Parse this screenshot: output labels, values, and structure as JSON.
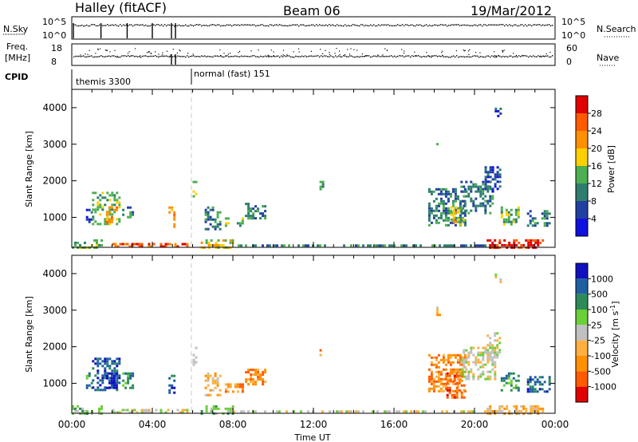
{
  "header": {
    "station": "Halley (fitACF)",
    "beam": "Beam 06",
    "date": "19/Mar/2012"
  },
  "strips": {
    "nsky": {
      "label": "N.Sky",
      "ticks": [
        "10^5",
        "10^0"
      ],
      "right_ticks": [
        "10^5",
        "10^0"
      ],
      "right_label": "N.Search"
    },
    "freq": {
      "label_top": "Freq.",
      "label_bottom": "[MHz]",
      "ticks": [
        "18",
        "8"
      ],
      "right_ticks": [
        "60",
        "0"
      ],
      "right_label": "Nave"
    },
    "cpid": {
      "label": "CPID",
      "modes": [
        {
          "name": "themis 3300",
          "start_hour": 0
        },
        {
          "name": "normal (fast) 151",
          "start_hour": 6.0
        }
      ]
    }
  },
  "colors": {
    "power": [
      "#1010e0",
      "#2040a0",
      "#2e7d6e",
      "#4caf50",
      "#ffd000",
      "#ff9000",
      "#ff5a00",
      "#e00000"
    ],
    "velocity": [
      "#e00000",
      "#ff5a00",
      "#ff9000",
      "#ffb040",
      "#c0c0c0",
      "#6bcf3a",
      "#2e8b57",
      "#2060a0",
      "#1010c0"
    ]
  },
  "chart_data": [
    {
      "type": "heatmap",
      "ylabel": "Slant Range [km]",
      "xlabel": "",
      "yticks": [
        "1000",
        "2000",
        "3000",
        "4000"
      ],
      "ylim": [
        180,
        4500
      ],
      "xlim": [
        0,
        24
      ],
      "colorbar": {
        "label": "Power [dB]",
        "ticks": [
          "4",
          "8",
          "12",
          "16",
          "20",
          "24",
          "28"
        ],
        "range": [
          0,
          32
        ]
      },
      "patches": [
        {
          "t0": 0.7,
          "t1": 1.0,
          "r0": 900,
          "r1": 1300,
          "level": 1
        },
        {
          "t0": 1.0,
          "t1": 2.4,
          "r0": 800,
          "r1": 1700,
          "level": 3
        },
        {
          "t0": 1.7,
          "t1": 2.2,
          "r0": 900,
          "r1": 1300,
          "level": 5
        },
        {
          "t0": 2.5,
          "t1": 3.0,
          "r0": 1000,
          "r1": 1300,
          "level": 2
        },
        {
          "t0": 4.8,
          "t1": 5.1,
          "r0": 700,
          "r1": 1300,
          "level": 5
        },
        {
          "t0": 6.0,
          "t1": 6.2,
          "r0": 1500,
          "r1": 2000,
          "level": 4
        },
        {
          "t0": 6.6,
          "t1": 7.4,
          "r0": 700,
          "r1": 1300,
          "level": 2
        },
        {
          "t0": 7.6,
          "t1": 8.5,
          "r0": 800,
          "r1": 1000,
          "level": 3
        },
        {
          "t0": 8.6,
          "t1": 9.6,
          "r0": 1000,
          "r1": 1400,
          "level": 2
        },
        {
          "t0": 12.3,
          "t1": 12.5,
          "r0": 1800,
          "r1": 2000,
          "level": 3
        },
        {
          "t0": 17.7,
          "t1": 19.6,
          "r0": 800,
          "r1": 1800,
          "level": 2
        },
        {
          "t0": 18.8,
          "t1": 19.4,
          "r0": 800,
          "r1": 1300,
          "level": 4
        },
        {
          "t0": 19.3,
          "t1": 20.9,
          "r0": 1100,
          "r1": 2000,
          "level": 2
        },
        {
          "t0": 20.5,
          "t1": 21.3,
          "r0": 1700,
          "r1": 2400,
          "level": 1
        },
        {
          "t0": 21.3,
          "t1": 22.2,
          "r0": 800,
          "r1": 1300,
          "level": 3
        },
        {
          "t0": 22.6,
          "t1": 23.7,
          "r0": 800,
          "r1": 1200,
          "level": 2
        },
        {
          "t0": 18.1,
          "t1": 18.3,
          "r0": 2900,
          "r1": 3100,
          "level": 2
        },
        {
          "t0": 21.0,
          "t1": 21.3,
          "r0": 3800,
          "r1": 4000,
          "level": 1
        },
        {
          "t0": 0.0,
          "t1": 1.5,
          "r0": 200,
          "r1": 400,
          "level": 3
        },
        {
          "t0": 2.0,
          "t1": 5.8,
          "r0": 200,
          "r1": 300,
          "level": 6
        },
        {
          "t0": 6.4,
          "t1": 8.0,
          "r0": 200,
          "r1": 400,
          "level": 4
        },
        {
          "t0": 20.6,
          "t1": 23.4,
          "r0": 200,
          "r1": 400,
          "level": 7
        },
        {
          "t0": 8.0,
          "t1": 20.5,
          "r0": 200,
          "r1": 260,
          "level": 2
        }
      ]
    },
    {
      "type": "heatmap",
      "ylabel": "Slant Range [km]",
      "xlabel": "Time UT",
      "yticks": [
        "1000",
        "2000",
        "3000",
        "4000"
      ],
      "ylim": [
        180,
        4500
      ],
      "xlim": [
        0,
        24
      ],
      "xticks": [
        "00:00",
        "04:00",
        "08:00",
        "12:00",
        "16:00",
        "20:00",
        "00:00"
      ],
      "colorbar": {
        "label": "Velocity [m s",
        "label_sup": "-1",
        "label_end": "]",
        "ticks": [
          "1000",
          "500",
          "100",
          "25",
          "-25",
          "-100",
          "-500",
          "-1000"
        ]
      },
      "patches": [
        {
          "t0": 0.7,
          "t1": 1.0,
          "r0": 900,
          "r1": 1300,
          "level": 6
        },
        {
          "t0": 1.0,
          "t1": 2.4,
          "r0": 800,
          "r1": 1700,
          "level": 7
        },
        {
          "t0": 1.7,
          "t1": 2.2,
          "r0": 900,
          "r1": 1300,
          "level": 8
        },
        {
          "t0": 2.5,
          "t1": 3.0,
          "r0": 900,
          "r1": 1300,
          "level": 6
        },
        {
          "t0": 4.8,
          "t1": 5.1,
          "r0": 700,
          "r1": 1300,
          "level": 7
        },
        {
          "t0": 6.0,
          "t1": 6.2,
          "r0": 1500,
          "r1": 2000,
          "level": 4
        },
        {
          "t0": 6.6,
          "t1": 7.4,
          "r0": 700,
          "r1": 1300,
          "level": 3
        },
        {
          "t0": 7.6,
          "t1": 8.5,
          "r0": 800,
          "r1": 1000,
          "level": 2
        },
        {
          "t0": 8.6,
          "t1": 9.6,
          "r0": 1000,
          "r1": 1400,
          "level": 2
        },
        {
          "t0": 12.3,
          "t1": 12.5,
          "r0": 1800,
          "r1": 2000,
          "level": 2
        },
        {
          "t0": 17.7,
          "t1": 19.6,
          "r0": 800,
          "r1": 1800,
          "level": 2
        },
        {
          "t0": 18.6,
          "t1": 19.5,
          "r0": 600,
          "r1": 1300,
          "level": 1
        },
        {
          "t0": 19.3,
          "t1": 21.0,
          "r0": 1100,
          "r1": 2000,
          "level": 4
        },
        {
          "t0": 20.6,
          "t1": 21.3,
          "r0": 1700,
          "r1": 2400,
          "level": 4
        },
        {
          "t0": 21.3,
          "t1": 22.2,
          "r0": 800,
          "r1": 1300,
          "level": 6
        },
        {
          "t0": 22.6,
          "t1": 23.7,
          "r0": 800,
          "r1": 1200,
          "level": 7
        },
        {
          "t0": 18.1,
          "t1": 18.3,
          "r0": 2900,
          "r1": 3100,
          "level": 3
        },
        {
          "t0": 21.0,
          "t1": 21.3,
          "r0": 3800,
          "r1": 4000,
          "level": 4
        },
        {
          "t0": 0.0,
          "t1": 1.5,
          "r0": 200,
          "r1": 400,
          "level": 5
        },
        {
          "t0": 2.0,
          "t1": 5.8,
          "r0": 200,
          "r1": 300,
          "level": 4
        },
        {
          "t0": 6.4,
          "t1": 8.0,
          "r0": 200,
          "r1": 400,
          "level": 5
        },
        {
          "t0": 20.6,
          "t1": 23.4,
          "r0": 200,
          "r1": 400,
          "level": 3
        },
        {
          "t0": 8.0,
          "t1": 20.5,
          "r0": 200,
          "r1": 260,
          "level": 4
        }
      ]
    }
  ]
}
